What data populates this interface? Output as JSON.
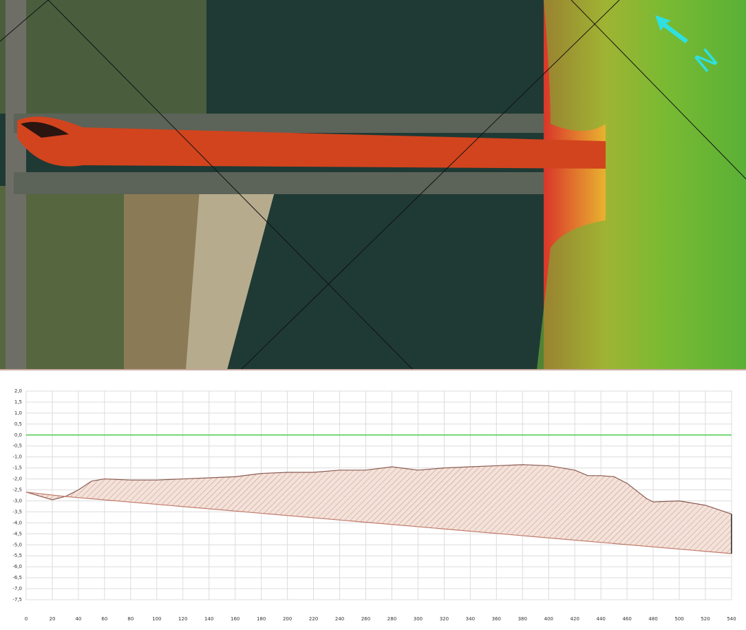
{
  "map": {
    "north_label": "N"
  },
  "chart_data": {
    "type": "line",
    "xlim": [
      0,
      540
    ],
    "ylim": [
      -7.5,
      2
    ],
    "xticks": [
      0,
      20,
      40,
      60,
      80,
      100,
      120,
      140,
      160,
      180,
      200,
      220,
      240,
      260,
      280,
      300,
      320,
      340,
      360,
      380,
      400,
      420,
      440,
      460,
      480,
      500,
      520,
      540
    ],
    "yticks": [
      {
        "value": 2,
        "label": "2,0"
      },
      {
        "value": 1.5,
        "label": "1,5"
      },
      {
        "value": 1,
        "label": "1,0"
      },
      {
        "value": 0.5,
        "label": "0,5"
      },
      {
        "value": 0,
        "label": "0,0"
      },
      {
        "value": -0.5,
        "label": "-0,5"
      },
      {
        "value": -1,
        "label": "-1,0"
      },
      {
        "value": -1.5,
        "label": "-1,5"
      },
      {
        "value": -2,
        "label": "-2,0"
      },
      {
        "value": -2.5,
        "label": "-2,5"
      },
      {
        "value": -3,
        "label": "-3,0"
      },
      {
        "value": -3.5,
        "label": "-3,5"
      },
      {
        "value": -4,
        "label": "-4,0"
      },
      {
        "value": -4.5,
        "label": "-4,5"
      },
      {
        "value": -5,
        "label": "-5,0"
      },
      {
        "value": -5.5,
        "label": "-5,5"
      },
      {
        "value": -6,
        "label": "-6,0"
      },
      {
        "value": -6.5,
        "label": "-6,5"
      },
      {
        "value": -7,
        "label": "-7,0"
      },
      {
        "value": -7.5,
        "label": "-7,5"
      }
    ],
    "grid": true,
    "reference_line": {
      "value": 0,
      "color": "#4cc94c"
    },
    "fill_color": "#b5634a",
    "series": [
      {
        "color": "#8a5a50",
        "x": [
          0,
          20,
          30,
          40,
          50,
          60,
          80,
          100,
          120,
          140,
          160,
          180,
          200,
          220,
          240,
          260,
          280,
          300,
          320,
          340,
          360,
          380,
          400,
          420,
          430,
          440,
          450,
          460,
          475,
          480,
          500,
          520,
          540
        ],
        "values": [
          -2.6,
          -2.95,
          -2.8,
          -2.5,
          -2.1,
          -2.0,
          -2.05,
          -2.05,
          -2.0,
          -1.95,
          -1.9,
          -1.75,
          -1.7,
          -1.7,
          -1.6,
          -1.6,
          -1.45,
          -1.6,
          -1.5,
          -1.45,
          -1.4,
          -1.35,
          -1.4,
          -1.6,
          -1.85,
          -1.85,
          -1.9,
          -2.2,
          -2.9,
          -3.05,
          -3.0,
          -3.2,
          -3.6
        ]
      },
      {
        "color": "#c07a6a",
        "x": [
          0,
          30,
          540
        ],
        "values": [
          -2.6,
          -2.8,
          -5.4
        ]
      }
    ]
  }
}
